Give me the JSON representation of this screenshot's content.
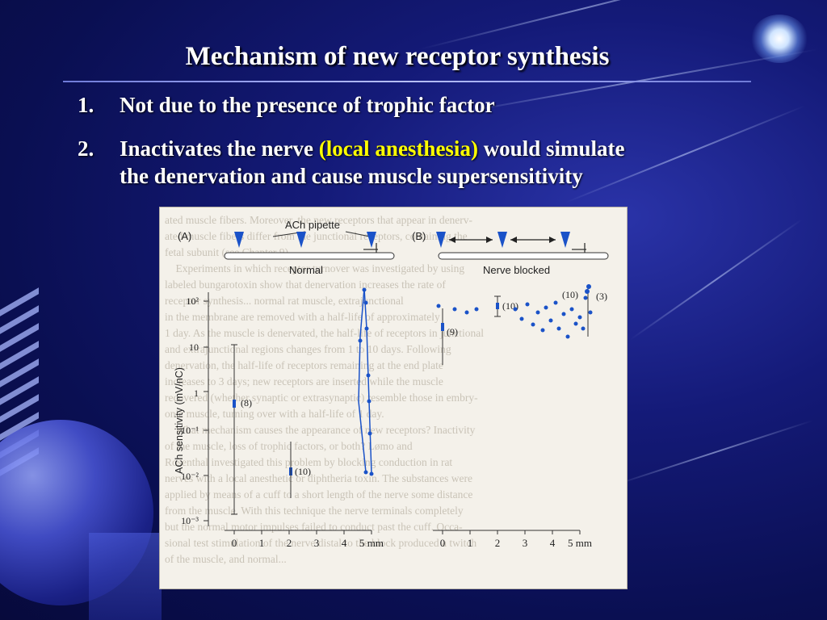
{
  "slide": {
    "title": "Mechanism of new receptor synthesis",
    "items": [
      {
        "num": "1.",
        "line1": "Not due to the presence of trophic factor"
      },
      {
        "num": "2.",
        "line1_a": "Inactivates the nerve ",
        "line1_hl": "(local anesthesia)",
        "line1_b": " would simulate",
        "line2": "the denervation and cause muscle supersensitivity"
      }
    ],
    "colors": {
      "background": "#141a78",
      "text": "#ffffff",
      "highlight": "#ffff00"
    }
  },
  "figure": {
    "background_text": [
      "ated muscle fibers. Moreover, the new receptors that appear in denerv-",
      "ated muscle fibers differ from the junctional receptors, containing the",
      "fetal subunit (see Chapter 9)...",
      "    Experiments in which receptor turnover was investigated by using",
      "labeled bungarotoxin show that denervation increases the rate of",
      "receptor synthesis... normal rat muscle, extrajunctional",
      "in the membrane are removed with a half-life of approximately",
      "1 day. As the muscle is denervated, the half-life of receptors in junctional",
      "and extrajunctional regions changes from 1 to 10 days. Following",
      "denervation, the half-life of receptors remaining at the end plate",
      "increases to 3 days; new receptors are inserted while the muscle",
      "recovered (whether synaptic or extrasynaptic) resemble those in embry-",
      "onic muscle, turning over with a half-life of 1 day.",
      "    What mechanism causes the appearance of new receptors? Inactivity",
      "of the muscle, loss of trophic factors, or both? Lømo and",
      "Rosenthal investigated this problem by blocking conduction in rat",
      "nerves with a local anesthetic or diphtheria toxin. The substances were",
      "applied by means of a cuff to a short length of the nerve some distance",
      "from the muscle. With this technique the nerve terminals completely",
      "but the normal motor impulses failed to conduct past the cuff. Occa-",
      "sional test stimulation of the nerve distal to the block produced a twitch",
      "of the muscle, and normal..."
    ],
    "panel_a_label": "(A)",
    "panel_b_label": "(B)",
    "pipette_label": "ACh pipette",
    "normal_label": "Normal",
    "blocked_label": "Nerve blocked",
    "ylabel": "ACh sensitivity (mV/nC)",
    "yticks": [
      "10²",
      "10",
      "1",
      "10⁻¹",
      "10⁻²",
      "10⁻³"
    ],
    "xticks": [
      "0",
      "1",
      "2",
      "3",
      "4",
      "5 mm"
    ],
    "annot_a": [
      "(8)",
      "(10)"
    ],
    "annot_b": [
      "(9)",
      "(10)",
      "(10)",
      "(3)"
    ]
  }
}
